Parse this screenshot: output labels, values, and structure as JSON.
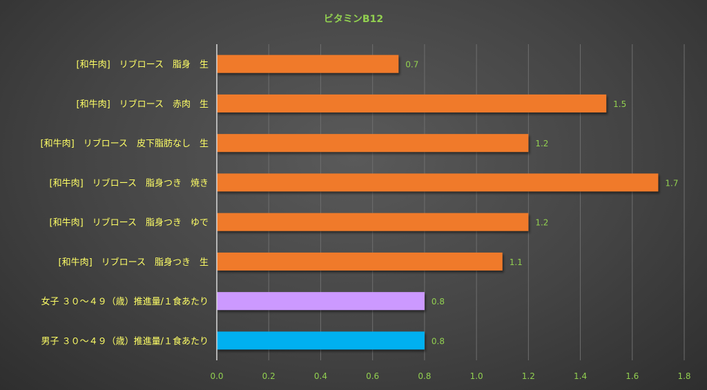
{
  "chart_data": {
    "type": "bar",
    "orientation": "horizontal",
    "title": "ビタミンB12",
    "categories": [
      "[和牛肉]　リブロース　脂身　生",
      "[和牛肉]　リブロース　赤肉　生",
      "[和牛肉]　リブロース　皮下脂肪なし　生",
      "[和牛肉]　リブロース　脂身つき　焼き",
      "[和牛肉]　リブロース　脂身つき　ゆで",
      "[和牛肉]　リブロース　脂身つき　生",
      "女子 ３０～４９（歳）推進量/１食あたり",
      "男子 ３０～４９（歳）推進量/１食あたり"
    ],
    "values": [
      0.7,
      1.5,
      1.2,
      1.7,
      1.2,
      1.1,
      0.8,
      0.8
    ],
    "value_labels": [
      "0.7",
      "1.5",
      "1.2",
      "1.7",
      "1.2",
      "1.1",
      "0.8",
      "0.8"
    ],
    "xlim": [
      0,
      1.8
    ],
    "ticks": [
      "0.0",
      "0.2",
      "0.4",
      "0.6",
      "0.8",
      "1.0",
      "1.2",
      "1.4",
      "1.6",
      "1.8"
    ],
    "grid": true,
    "legend": "none",
    "colors": {
      "bars": [
        "#F07A2A",
        "#F07A2A",
        "#F07A2A",
        "#F07A2A",
        "#F07A2A",
        "#F07A2A",
        "#CC99FF",
        "#00B0F0"
      ],
      "title": "#92D050",
      "category_label": "#FFFF66",
      "value_label": "#92D050",
      "tick_label": "#92D050",
      "grid": "#6E6E6E",
      "axis": "#D9D9D9"
    }
  }
}
